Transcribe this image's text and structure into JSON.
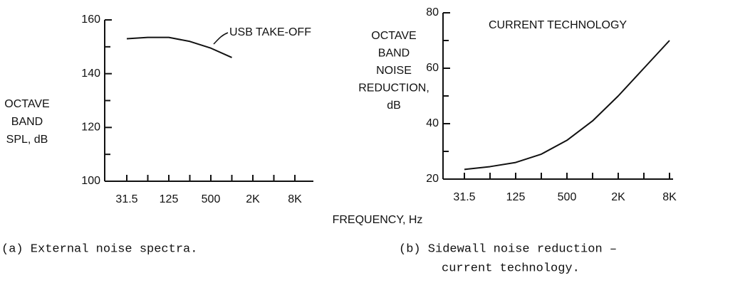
{
  "xlabel": "FREQUENCY, Hz",
  "chart_data": [
    {
      "type": "line",
      "annotation": "USB TAKE-OFF",
      "ylabel_lines": [
        "OCTAVE",
        "BAND",
        "SPL, dB"
      ],
      "caption": [
        "(a) External noise spectra."
      ],
      "categories": [
        "31.5",
        null,
        "125",
        null,
        "500",
        null,
        "2K",
        null,
        "8K"
      ],
      "series": [
        {
          "name": "USB TAKE-OFF",
          "color": "#111111",
          "values": [
            153,
            153.5,
            153.5,
            152,
            149.5,
            146,
            null,
            null,
            null
          ]
        }
      ],
      "ylim": [
        100,
        160
      ],
      "yticks": [
        100,
        120,
        140,
        160
      ],
      "minor_yticks": [
        110,
        130,
        150
      ]
    },
    {
      "type": "line",
      "annotation": "CURRENT TECHNOLOGY",
      "ylabel_lines": [
        "OCTAVE",
        "BAND",
        "NOISE",
        "REDUCTION,",
        "dB"
      ],
      "caption": [
        "(b) Sidewall noise reduction –",
        "current technology."
      ],
      "categories": [
        "31.5",
        null,
        "125",
        null,
        "500",
        null,
        "2K",
        null,
        "8K"
      ],
      "series": [
        {
          "name": "CURRENT TECHNOLOGY",
          "color": "#111111",
          "values": [
            23.5,
            24.5,
            26,
            29,
            34,
            41,
            50,
            60,
            70
          ]
        }
      ],
      "ylim": [
        20,
        80
      ],
      "yticks": [
        20,
        40,
        60,
        80
      ],
      "minor_yticks": [
        30,
        50,
        70
      ]
    }
  ]
}
